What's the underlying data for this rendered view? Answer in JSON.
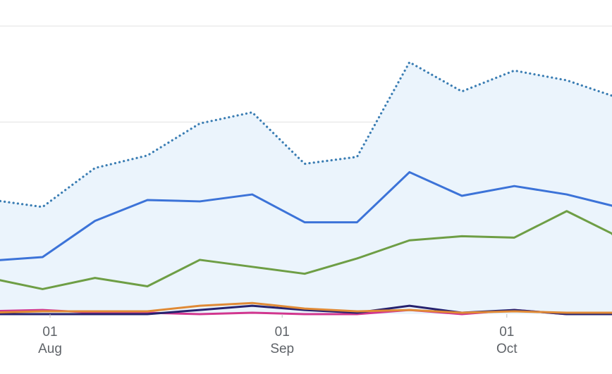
{
  "chart_data": {
    "type": "line",
    "x_ticks": [
      {
        "day": "01",
        "month": "Aug",
        "x": "2024-08-01"
      },
      {
        "day": "01",
        "month": "Sep",
        "x": "2024-09-01"
      },
      {
        "day": "01",
        "month": "Oct",
        "x": "2024-10-01"
      }
    ],
    "x": [
      "2024-07-23",
      "2024-07-31",
      "2024-08-07",
      "2024-08-14",
      "2024-08-21",
      "2024-08-28",
      "2024-09-04",
      "2024-09-11",
      "2024-09-18",
      "2024-09-25",
      "2024-10-02",
      "2024-10-09",
      "2024-10-15",
      "2024-10-16"
    ],
    "grid": true,
    "series": [
      {
        "style": "dotted",
        "color": "#3a7db3",
        "area_fill": "#ebf4fc",
        "values": [
          83,
          77,
          105,
          114,
          137,
          145,
          108,
          113,
          181,
          160,
          175,
          168,
          157,
          150
        ]
      },
      {
        "style": "solid",
        "color": "#3c73d8",
        "values": [
          38,
          41,
          67,
          82,
          81,
          86,
          66,
          66,
          102,
          85,
          92,
          86,
          78,
          75
        ]
      },
      {
        "style": "solid",
        "color": "#6e9e45",
        "values": [
          27,
          18,
          26,
          20,
          39,
          34,
          29,
          40,
          53,
          56,
          55,
          74,
          58,
          52
        ]
      },
      {
        "style": "solid",
        "color": "#e08a36",
        "values": [
          1,
          2,
          2,
          2,
          6,
          8,
          4,
          2,
          3,
          1,
          2,
          1,
          1,
          0
        ]
      },
      {
        "style": "solid",
        "color": "#26226e",
        "values": [
          0,
          0,
          0,
          0,
          3,
          6,
          3,
          1,
          6,
          1,
          3,
          0,
          0,
          0
        ]
      },
      {
        "style": "solid",
        "color": "#d1368e",
        "values": [
          2,
          3,
          1,
          1,
          0,
          1,
          0,
          0,
          3,
          0,
          3,
          0,
          0,
          0
        ]
      }
    ],
    "ylim": [
      0,
      209
    ]
  }
}
